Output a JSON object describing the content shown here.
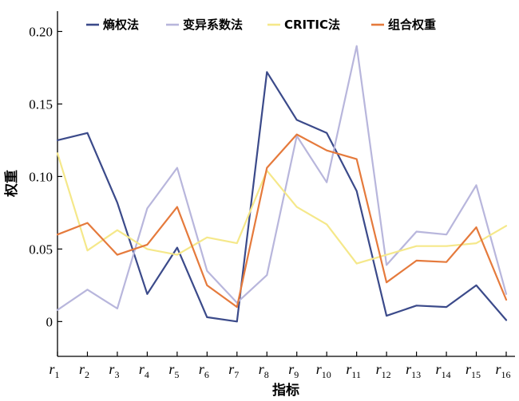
{
  "chart_data": {
    "type": "line",
    "categories": [
      "r1",
      "r2",
      "r3",
      "r4",
      "r5",
      "r6",
      "r7",
      "r8",
      "r9",
      "r10",
      "r11",
      "r12",
      "r13",
      "r14",
      "r15",
      "r16"
    ],
    "category_labels": [
      {
        "base": "r",
        "sub": "1"
      },
      {
        "base": "r",
        "sub": "2"
      },
      {
        "base": "r",
        "sub": "3"
      },
      {
        "base": "r",
        "sub": "4"
      },
      {
        "base": "r",
        "sub": "5"
      },
      {
        "base": "r",
        "sub": "6"
      },
      {
        "base": "r",
        "sub": "7"
      },
      {
        "base": "r",
        "sub": "8"
      },
      {
        "base": "r",
        "sub": "9"
      },
      {
        "base": "r",
        "sub": "10"
      },
      {
        "base": "r",
        "sub": "11"
      },
      {
        "base": "r",
        "sub": "12"
      },
      {
        "base": "r",
        "sub": "13"
      },
      {
        "base": "r",
        "sub": "14"
      },
      {
        "base": "r",
        "sub": "15"
      },
      {
        "base": "r",
        "sub": "16"
      }
    ],
    "series": [
      {
        "name": "熵权法",
        "color": "#3b4a8a",
        "values": [
          0.125,
          0.13,
          0.082,
          0.019,
          0.051,
          0.003,
          0.0,
          0.172,
          0.139,
          0.13,
          0.09,
          0.004,
          0.011,
          0.01,
          0.025,
          0.001
        ]
      },
      {
        "name": "变异系数法",
        "color": "#b8b6dc",
        "values": [
          0.008,
          0.022,
          0.009,
          0.078,
          0.106,
          0.035,
          0.013,
          0.032,
          0.128,
          0.096,
          0.19,
          0.039,
          0.062,
          0.06,
          0.094,
          0.019
        ]
      },
      {
        "name": "CRITIC法",
        "color": "#f5e88a",
        "values": [
          0.116,
          0.049,
          0.063,
          0.05,
          0.046,
          0.058,
          0.054,
          0.104,
          0.079,
          0.067,
          0.04,
          0.046,
          0.052,
          0.052,
          0.054,
          0.066
        ]
      },
      {
        "name": "组合权重",
        "color": "#e57a3c",
        "values": [
          0.06,
          0.068,
          0.046,
          0.053,
          0.079,
          0.025,
          0.01,
          0.106,
          0.129,
          0.118,
          0.112,
          0.027,
          0.042,
          0.041,
          0.065,
          0.015
        ]
      }
    ],
    "xlabel": "指标",
    "ylabel": "权重",
    "ylim": [
      -0.024,
      0.214
    ],
    "yticks": [
      0,
      0.05,
      0.1,
      0.15,
      0.2
    ],
    "ytick_labels": [
      "0",
      "0.05",
      "0.10",
      "0.15",
      "0.20"
    ],
    "grid": false,
    "legend_position": "top"
  }
}
